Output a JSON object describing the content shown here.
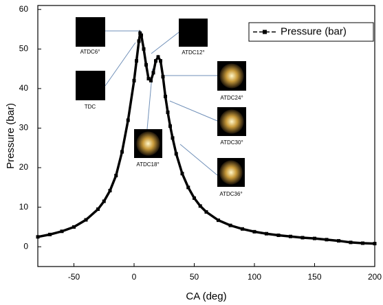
{
  "chart_data": {
    "type": "line",
    "x_label": "CA (deg)",
    "y_label": "Pressure (bar)",
    "x": [
      -80,
      -70,
      -60,
      -50,
      -40,
      -30,
      -25,
      -20,
      -15,
      -10,
      -5,
      0,
      2,
      4,
      5,
      6,
      8,
      10,
      12,
      14,
      16,
      18,
      20,
      22,
      24,
      26,
      28,
      30,
      32,
      35,
      40,
      45,
      50,
      55,
      60,
      70,
      80,
      90,
      100,
      110,
      120,
      130,
      140,
      150,
      160,
      170,
      180,
      190,
      200
    ],
    "series": [
      {
        "name": "Pressure (bar)",
        "color": "#000000",
        "values": [
          2.5,
          3.1,
          3.9,
          5.0,
          6.8,
          9.5,
          11.5,
          14.2,
          18,
          24,
          32,
          42,
          47,
          52,
          54,
          53.5,
          50,
          46,
          42.5,
          42,
          44,
          47,
          48,
          47,
          43,
          38,
          34,
          30.5,
          27.5,
          23.5,
          18.5,
          15,
          12.3,
          10.3,
          8.8,
          6.7,
          5.4,
          4.5,
          3.8,
          3.3,
          2.9,
          2.6,
          2.3,
          2.1,
          1.8,
          1.5,
          1.1,
          0.9,
          0.8
        ]
      }
    ],
    "xlim": [
      -80,
      200
    ],
    "ylim": [
      -5,
      61
    ],
    "xticks": [
      -50,
      0,
      50,
      100,
      150,
      200
    ],
    "yticks": [
      0,
      10,
      20,
      30,
      40,
      50,
      60
    ],
    "legend": "top-right",
    "annotations": [
      "ATDC6°",
      "TDC",
      "ATDC12°",
      "ATDC24°",
      "ATDC30°",
      "ATDC18°",
      "ATDC36°"
    ]
  }
}
